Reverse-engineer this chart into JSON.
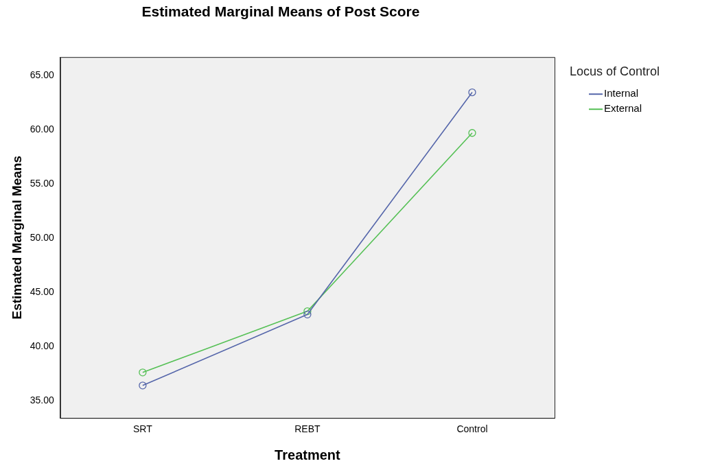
{
  "chart_data": {
    "type": "line",
    "title": "Estimated Marginal Means of Post Score",
    "xlabel": "Treatment",
    "ylabel": "Estimated Marginal Means",
    "legend_title": "Locus of Control",
    "categories": [
      "SRT",
      "REBT",
      "Control"
    ],
    "series": [
      {
        "name": "Internal",
        "color": "#5566aa",
        "values": [
          36.4,
          42.95,
          63.45
        ]
      },
      {
        "name": "External",
        "color": "#55c055",
        "values": [
          37.6,
          43.25,
          59.7
        ]
      }
    ],
    "ylim": [
      33.4,
      66.7
    ],
    "yticks": [
      {
        "value": 35,
        "label": "35.00"
      },
      {
        "value": 40,
        "label": "40.00"
      },
      {
        "value": 45,
        "label": "45.00"
      },
      {
        "value": 50,
        "label": "50.00"
      },
      {
        "value": 55,
        "label": "55.00"
      },
      {
        "value": 60,
        "label": "60.00"
      },
      {
        "value": 65,
        "label": "65.00"
      }
    ],
    "grid": false,
    "legend": "right",
    "marker": "circle",
    "line_style": "solid"
  }
}
